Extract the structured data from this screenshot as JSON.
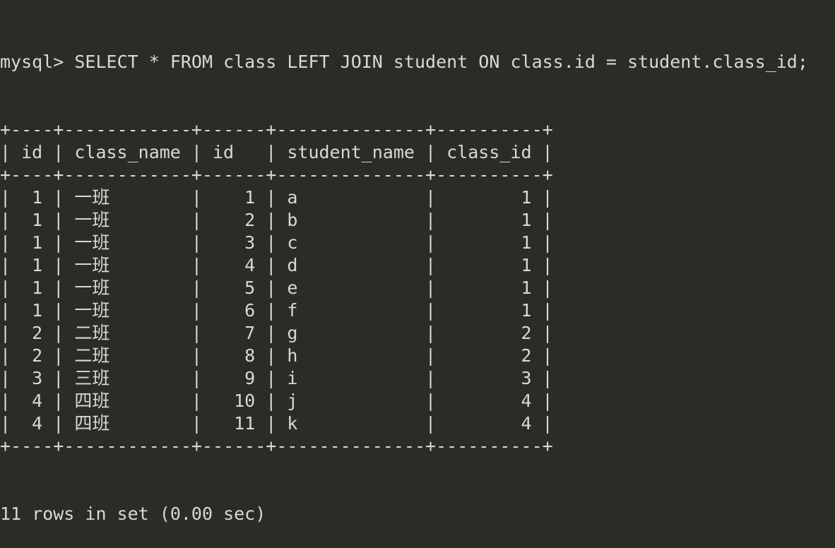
{
  "terminal": {
    "prompt": "mysql> ",
    "command": "SELECT * FROM class LEFT JOIN student ON class.id = student.class_id;",
    "colors": {
      "background": "#2c2c27",
      "text": "#d9d9d1"
    },
    "table": {
      "columns": [
        {
          "header": "id",
          "width": 4,
          "align": "right"
        },
        {
          "header": "class_name",
          "width": 12,
          "align": "left"
        },
        {
          "header": "id",
          "width": 6,
          "align": "right"
        },
        {
          "header": "student_name",
          "width": 14,
          "align": "left"
        },
        {
          "header": "class_id",
          "width": 10,
          "align": "right"
        }
      ],
      "rows": [
        [
          "1",
          "一班",
          "1",
          "a",
          "1"
        ],
        [
          "1",
          "一班",
          "2",
          "b",
          "1"
        ],
        [
          "1",
          "一班",
          "3",
          "c",
          "1"
        ],
        [
          "1",
          "一班",
          "4",
          "d",
          "1"
        ],
        [
          "1",
          "一班",
          "5",
          "e",
          "1"
        ],
        [
          "1",
          "一班",
          "6",
          "f",
          "1"
        ],
        [
          "2",
          "二班",
          "7",
          "g",
          "2"
        ],
        [
          "2",
          "二班",
          "8",
          "h",
          "2"
        ],
        [
          "3",
          "三班",
          "9",
          "i",
          "3"
        ],
        [
          "4",
          "四班",
          "10",
          "j",
          "4"
        ],
        [
          "4",
          "四班",
          "11",
          "k",
          "4"
        ]
      ]
    },
    "footer": "11 rows in set (0.00 sec)"
  }
}
